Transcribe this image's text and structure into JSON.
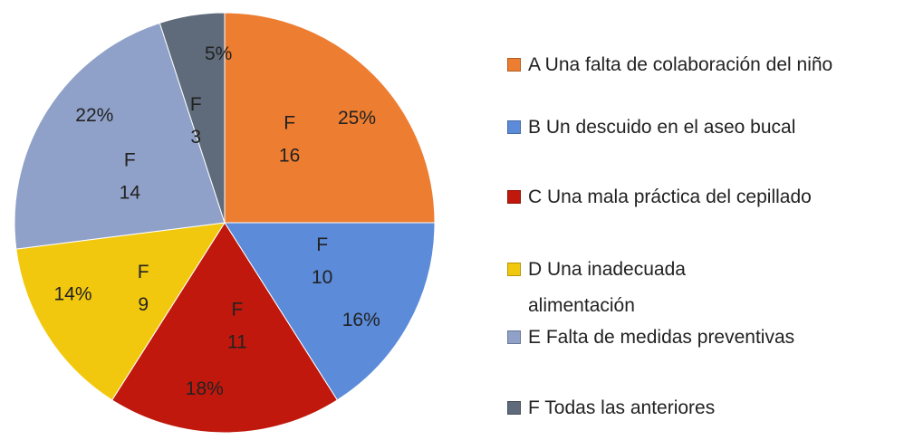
{
  "chart_data": {
    "type": "pie",
    "categories": [
      "A Una falta de colaboración del niño",
      "B Un descuido en el aseo bucal",
      "C Una mala práctica del cepillado",
      "D Una inadecuada alimentación",
      "E Falta de medidas preventivas",
      "F Todas las anteriores"
    ],
    "values": [
      25,
      16,
      18,
      14,
      22,
      5
    ],
    "value_labels": [
      "25%",
      "16%",
      "18%",
      "14%",
      "22%",
      "5%"
    ],
    "frequency_label": "F",
    "frequencies": [
      16,
      10,
      11,
      9,
      14,
      3
    ],
    "colors": [
      "#ED7D31",
      "#5B8BD9",
      "#C0180C",
      "#F2C80F",
      "#8FA1C8",
      "#5F6A7A"
    ],
    "legend": "right"
  }
}
